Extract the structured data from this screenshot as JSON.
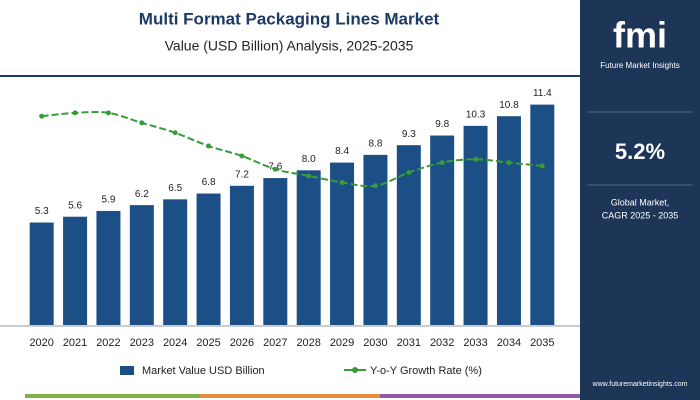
{
  "chart_data": {
    "type": "bar",
    "title": "Multi Format Packaging Lines Market",
    "subtitle": "Value (USD Billion) Analysis, 2025-2035",
    "categories": [
      "2020",
      "2021",
      "2022",
      "2023",
      "2024",
      "2025",
      "2026",
      "2027",
      "2028",
      "2029",
      "2030",
      "2031",
      "2032",
      "2033",
      "2034",
      "2035"
    ],
    "ylim": [
      0,
      12
    ],
    "y2lim": [
      0,
      7
    ],
    "series": [
      {
        "name": "Market Value USD Billion",
        "color": "#1b4f86",
        "values": [
          5.3,
          5.6,
          5.9,
          6.2,
          6.5,
          6.8,
          7.2,
          7.6,
          8.0,
          8.4,
          8.8,
          9.3,
          9.8,
          10.3,
          10.8,
          11.4
        ],
        "value_labels": [
          "5.3",
          "5.6",
          "5.9",
          "6.2",
          "6.5",
          "6.8",
          "7.2",
          "7.6",
          "8.0",
          "8.4",
          "8.8",
          "9.3",
          "9.8",
          "10.3",
          "10.8",
          "11.4"
        ]
      },
      {
        "name": "Y-o-Y Growth Rate (%)",
        "color": "#3a9a3a",
        "axis": "y2",
        "values": [
          6.3,
          6.4,
          6.4,
          6.1,
          5.8,
          5.4,
          5.1,
          4.7,
          4.5,
          4.3,
          4.2,
          4.6,
          4.9,
          5.0,
          4.9,
          4.8
        ]
      }
    ]
  },
  "sidebar": {
    "logo": "fmi",
    "brand": "Future Market Insights",
    "cagr": "5.2%",
    "cagr_label_1": "Global Market,",
    "cagr_label_2": "CAGR 2025 - 2035",
    "url": "www.futuremarketinsights.com"
  }
}
